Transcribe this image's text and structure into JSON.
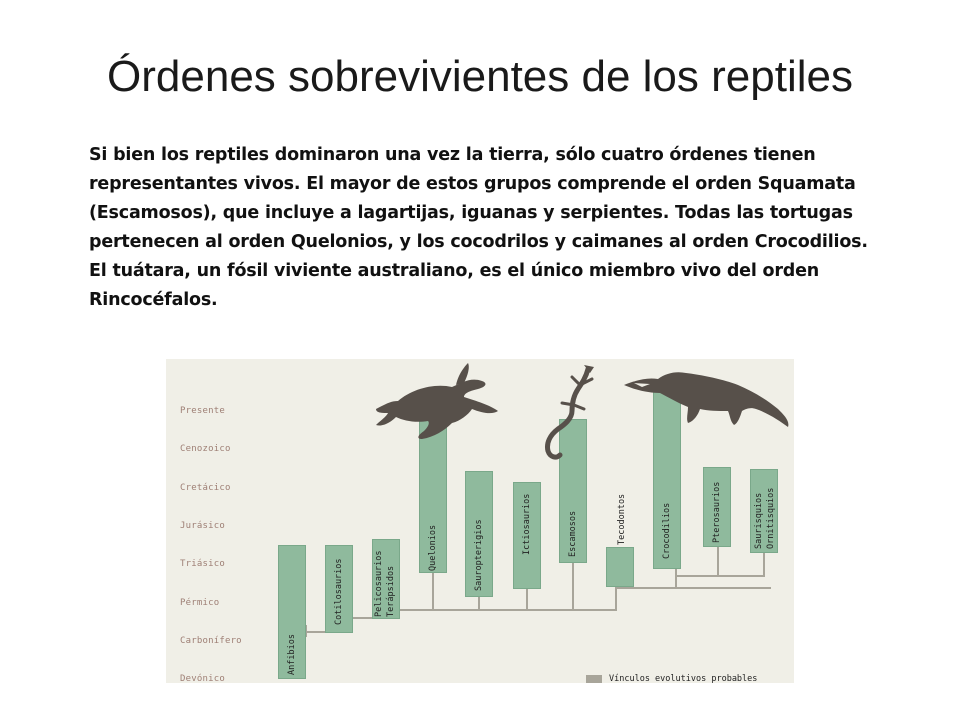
{
  "slide": {
    "title": "Órdenes sobrevivientes de los reptiles",
    "body": "Si bien los reptiles dominaron una vez la tierra, sólo cuatro órdenes tienen representantes vivos. El mayor de estos grupos comprende el orden Squamata (Escamosos), que incluye a lagartijas, iguanas y serpientes. Todas las tortugas pertenecen al orden Quelonios, y los cocodrilos y caimanes al orden Crocodilios. El tuátara, un fósil viviente australiano, es el único miembro vivo del orden Rincocéfalos."
  },
  "diagram": {
    "eras": [
      "Presente",
      "Cenozoico",
      "Cretácico",
      "Jurásico",
      "Triásico",
      "Pérmico",
      "Carbonífero",
      "Devónico"
    ],
    "groups": {
      "anfibios": "Anfibios",
      "cotilosaurios": "Cotilosaurios",
      "pelicosaurios": "Pelicosaurios",
      "terapsidos": "Terápsidos",
      "quelonios": "Quelonios",
      "sauropterigios": "Sauropterigios",
      "ictiosaurios": "Ictiosaurios",
      "escamosos": "Escamosos",
      "tecodontos": "Tecodontos",
      "crocodilios": "Crocodilios",
      "pterosaurios": "Pterosaurios",
      "saurisquios": "Saurisquios",
      "ornitisquios": "Ornitisquios"
    },
    "animals": [
      "turtle-silhouette",
      "lizard-silhouette",
      "crocodile-silhouette"
    ],
    "legend": "Vínculos evolutivos probables",
    "colors": {
      "bar": "#8fba9d",
      "link": "#a8a59a",
      "background": "#f0efe7",
      "era_text": "#9e7f75"
    }
  }
}
